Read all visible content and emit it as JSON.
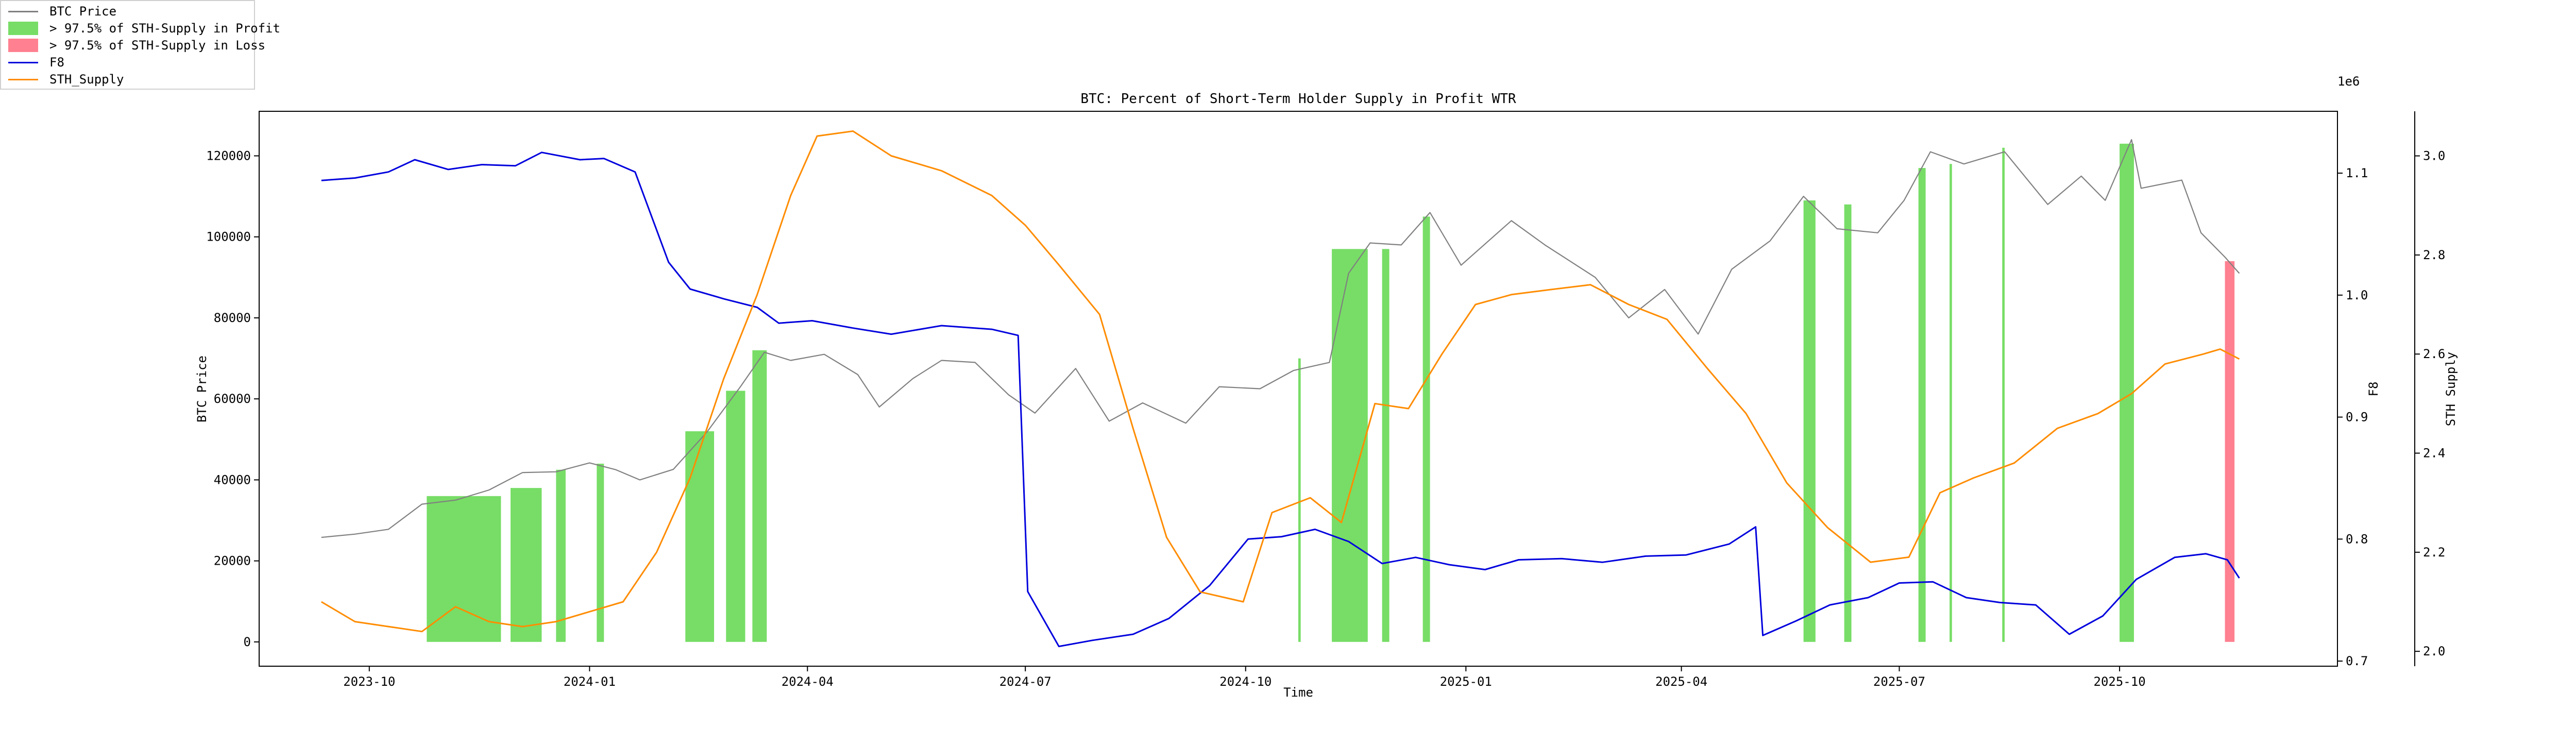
{
  "chart_data": {
    "type": "line",
    "title": "BTC: Percent of Short-Term Holder Supply in Profit WTR",
    "xlabel": "Time",
    "ylabel": "BTC Price",
    "y2label": "F8",
    "y3label": "STH Supply",
    "y3_offset_text": "1e6",
    "ylim": [
      -6000,
      131000
    ],
    "y2lim": [
      0.6958,
      1.1507
    ],
    "y3lim": [
      1.97,
      3.09
    ],
    "xlim": [
      "2023-08-16",
      "2025-12-31"
    ],
    "x_ticks": [
      "2023-10",
      "2024-01",
      "2024-04",
      "2024-07",
      "2024-10",
      "2025-01",
      "2025-04",
      "2025-07",
      "2025-10"
    ],
    "y_ticks": [
      "0",
      "20000",
      "40000",
      "60000",
      "80000",
      "100000",
      "120000"
    ],
    "y2_ticks": [
      "0.7",
      "0.8",
      "0.9",
      "1.0",
      "1.1"
    ],
    "y3_ticks": [
      "2.0",
      "2.2",
      "2.4",
      "2.6",
      "2.8",
      "3.0"
    ],
    "legend": {
      "position": "top-left",
      "entries": [
        {
          "label": "BTC Price",
          "color": "#808080",
          "kind": "line"
        },
        {
          "label": "> 97.5% of STH-Supply in Profit",
          "color": "#77dd66",
          "kind": "fill"
        },
        {
          "label": "> 97.5% of STH-Supply in Loss",
          "color": "#ff8090",
          "kind": "fill"
        },
        {
          "label": "F8",
          "color": "#0000dd",
          "kind": "line"
        },
        {
          "label": "STH_Supply",
          "color": "#ff8c00",
          "kind": "line"
        }
      ]
    },
    "series": [
      {
        "name": "BTC Price",
        "axis": "left",
        "color": "#808080",
        "points": [
          [
            "2023-09-11",
            25800
          ],
          [
            "2023-09-25",
            26600
          ],
          [
            "2023-10-09",
            27800
          ],
          [
            "2023-10-23",
            34000
          ],
          [
            "2023-11-06",
            35000
          ],
          [
            "2023-11-20",
            37500
          ],
          [
            "2023-12-04",
            41800
          ],
          [
            "2023-12-18",
            42000
          ],
          [
            "2024-01-01",
            44200
          ],
          [
            "2024-01-12",
            42500
          ],
          [
            "2024-01-22",
            40000
          ],
          [
            "2024-02-05",
            42600
          ],
          [
            "2024-02-19",
            51800
          ],
          [
            "2024-03-04",
            63000
          ],
          [
            "2024-03-14",
            71500
          ],
          [
            "2024-03-25",
            69500
          ],
          [
            "2024-04-08",
            71000
          ],
          [
            "2024-04-22",
            66000
          ],
          [
            "2024-05-01",
            58000
          ],
          [
            "2024-05-15",
            65000
          ],
          [
            "2024-05-27",
            69500
          ],
          [
            "2024-06-10",
            69000
          ],
          [
            "2024-06-24",
            61000
          ],
          [
            "2024-07-05",
            56500
          ],
          [
            "2024-07-22",
            67500
          ],
          [
            "2024-08-05",
            54500
          ],
          [
            "2024-08-19",
            59000
          ],
          [
            "2024-09-06",
            54000
          ],
          [
            "2024-09-20",
            63000
          ],
          [
            "2024-10-07",
            62500
          ],
          [
            "2024-10-21",
            67000
          ],
          [
            "2024-11-05",
            69000
          ],
          [
            "2024-11-13",
            91000
          ],
          [
            "2024-11-22",
            98500
          ],
          [
            "2024-12-05",
            98000
          ],
          [
            "2024-12-17",
            106000
          ],
          [
            "2024-12-30",
            93000
          ],
          [
            "2025-01-20",
            104000
          ],
          [
            "2025-02-03",
            98000
          ],
          [
            "2025-02-24",
            90000
          ],
          [
            "2025-03-10",
            80000
          ],
          [
            "2025-03-25",
            87000
          ],
          [
            "2025-04-08",
            76000
          ],
          [
            "2025-04-22",
            92000
          ],
          [
            "2025-05-08",
            99000
          ],
          [
            "2025-05-22",
            110000
          ],
          [
            "2025-06-05",
            102000
          ],
          [
            "2025-06-22",
            101000
          ],
          [
            "2025-07-03",
            109000
          ],
          [
            "2025-07-14",
            121000
          ],
          [
            "2025-07-28",
            118000
          ],
          [
            "2025-08-14",
            121000
          ],
          [
            "2025-09-01",
            108000
          ],
          [
            "2025-09-15",
            115000
          ],
          [
            "2025-09-25",
            109000
          ],
          [
            "2025-10-06",
            124000
          ],
          [
            "2025-10-10",
            112000
          ],
          [
            "2025-10-27",
            114000
          ],
          [
            "2025-11-04",
            101000
          ],
          [
            "2025-11-14",
            95000
          ],
          [
            "2025-11-20",
            91000
          ]
        ]
      },
      {
        "name": "F8",
        "axis": "right",
        "color": "#0000dd",
        "points": [
          [
            "2023-09-11",
            1.094
          ],
          [
            "2023-09-25",
            1.096
          ],
          [
            "2023-10-09",
            1.101
          ],
          [
            "2023-10-20",
            1.111
          ],
          [
            "2023-11-03",
            1.103
          ],
          [
            "2023-11-17",
            1.107
          ],
          [
            "2023-12-01",
            1.106
          ],
          [
            "2023-12-12",
            1.117
          ],
          [
            "2023-12-28",
            1.111
          ],
          [
            "2024-01-07",
            1.112
          ],
          [
            "2024-01-20",
            1.101
          ],
          [
            "2024-02-03",
            1.027
          ],
          [
            "2024-02-12",
            1.005
          ],
          [
            "2024-02-26",
            0.997
          ],
          [
            "2024-03-11",
            0.99
          ],
          [
            "2024-03-20",
            0.977
          ],
          [
            "2024-04-03",
            0.979
          ],
          [
            "2024-04-20",
            0.973
          ],
          [
            "2024-05-06",
            0.968
          ],
          [
            "2024-05-27",
            0.975
          ],
          [
            "2024-06-17",
            0.972
          ],
          [
            "2024-06-28",
            0.967
          ],
          [
            "2024-07-02",
            0.757
          ],
          [
            "2024-07-15",
            0.712
          ],
          [
            "2024-07-29",
            0.717
          ],
          [
            "2024-08-15",
            0.722
          ],
          [
            "2024-08-30",
            0.735
          ],
          [
            "2024-09-16",
            0.762
          ],
          [
            "2024-10-02",
            0.8
          ],
          [
            "2024-10-16",
            0.802
          ],
          [
            "2024-10-30",
            0.808
          ],
          [
            "2024-11-13",
            0.798
          ],
          [
            "2024-11-27",
            0.78
          ],
          [
            "2024-12-11",
            0.785
          ],
          [
            "2024-12-25",
            0.779
          ],
          [
            "2025-01-09",
            0.775
          ],
          [
            "2025-01-23",
            0.783
          ],
          [
            "2025-02-10",
            0.784
          ],
          [
            "2025-02-27",
            0.781
          ],
          [
            "2025-03-17",
            0.786
          ],
          [
            "2025-04-03",
            0.787
          ],
          [
            "2025-04-21",
            0.796
          ],
          [
            "2025-05-02",
            0.81
          ],
          [
            "2025-05-05",
            0.721
          ],
          [
            "2025-05-19",
            0.733
          ],
          [
            "2025-06-02",
            0.746
          ],
          [
            "2025-06-18",
            0.752
          ],
          [
            "2025-07-01",
            0.764
          ],
          [
            "2025-07-15",
            0.765
          ],
          [
            "2025-07-29",
            0.752
          ],
          [
            "2025-08-12",
            0.748
          ],
          [
            "2025-08-27",
            0.746
          ],
          [
            "2025-09-10",
            0.722
          ],
          [
            "2025-09-24",
            0.737
          ],
          [
            "2025-10-08",
            0.767
          ],
          [
            "2025-10-24",
            0.785
          ],
          [
            "2025-11-06",
            0.788
          ],
          [
            "2025-11-15",
            0.783
          ],
          [
            "2025-11-20",
            0.768
          ]
        ]
      },
      {
        "name": "STH_Supply",
        "axis": "right2",
        "color": "#ff8c00",
        "points": [
          [
            "2023-09-11",
            2.1
          ],
          [
            "2023-09-25",
            2.06
          ],
          [
            "2023-10-09",
            2.05
          ],
          [
            "2023-10-23",
            2.04
          ],
          [
            "2023-11-06",
            2.09
          ],
          [
            "2023-11-20",
            2.06
          ],
          [
            "2023-12-04",
            2.05
          ],
          [
            "2023-12-18",
            2.06
          ],
          [
            "2024-01-01",
            2.08
          ],
          [
            "2024-01-15",
            2.1
          ],
          [
            "2024-01-29",
            2.2
          ],
          [
            "2024-02-12",
            2.35
          ],
          [
            "2024-02-26",
            2.55
          ],
          [
            "2024-03-11",
            2.72
          ],
          [
            "2024-03-25",
            2.92
          ],
          [
            "2024-04-05",
            3.04
          ],
          [
            "2024-04-20",
            3.05
          ],
          [
            "2024-05-06",
            3.0
          ],
          [
            "2024-05-27",
            2.97
          ],
          [
            "2024-06-17",
            2.92
          ],
          [
            "2024-07-01",
            2.86
          ],
          [
            "2024-07-15",
            2.78
          ],
          [
            "2024-08-01",
            2.68
          ],
          [
            "2024-08-15",
            2.45
          ],
          [
            "2024-08-29",
            2.23
          ],
          [
            "2024-09-12",
            2.12
          ],
          [
            "2024-09-30",
            2.1
          ],
          [
            "2024-10-12",
            2.28
          ],
          [
            "2024-10-28",
            2.31
          ],
          [
            "2024-11-10",
            2.26
          ],
          [
            "2024-11-24",
            2.5
          ],
          [
            "2024-12-08",
            2.49
          ],
          [
            "2024-12-22",
            2.6
          ],
          [
            "2025-01-05",
            2.7
          ],
          [
            "2025-01-20",
            2.72
          ],
          [
            "2025-02-05",
            2.73
          ],
          [
            "2025-02-22",
            2.74
          ],
          [
            "2025-03-10",
            2.7
          ],
          [
            "2025-03-26",
            2.67
          ],
          [
            "2025-04-12",
            2.57
          ],
          [
            "2025-04-28",
            2.48
          ],
          [
            "2025-05-15",
            2.34
          ],
          [
            "2025-06-01",
            2.25
          ],
          [
            "2025-06-19",
            2.18
          ],
          [
            "2025-07-05",
            2.19
          ],
          [
            "2025-07-18",
            2.32
          ],
          [
            "2025-08-01",
            2.35
          ],
          [
            "2025-08-18",
            2.38
          ],
          [
            "2025-09-05",
            2.45
          ],
          [
            "2025-09-22",
            2.48
          ],
          [
            "2025-10-06",
            2.52
          ],
          [
            "2025-10-20",
            2.58
          ],
          [
            "2025-11-05",
            2.6
          ],
          [
            "2025-11-12",
            2.61
          ],
          [
            "2025-11-20",
            2.59
          ]
        ]
      }
    ],
    "profit_shading": [
      {
        "start": "2023-10-25",
        "end": "2023-11-25",
        "top": 36000
      },
      {
        "start": "2023-11-29",
        "end": "2023-12-12",
        "top": 38000
      },
      {
        "start": "2023-12-18",
        "end": "2023-12-22",
        "top": 42500
      },
      {
        "start": "2024-01-04",
        "end": "2024-01-07",
        "top": 44000
      },
      {
        "start": "2024-02-10",
        "end": "2024-02-22",
        "top": 52000
      },
      {
        "start": "2024-02-27",
        "end": "2024-03-06",
        "top": 62000
      },
      {
        "start": "2024-03-09",
        "end": "2024-03-15",
        "top": 72000
      },
      {
        "start": "2024-10-23",
        "end": "2024-10-24",
        "top": 70000
      },
      {
        "start": "2024-11-06",
        "end": "2024-11-21",
        "top": 97000
      },
      {
        "start": "2024-11-27",
        "end": "2024-11-30",
        "top": 97000
      },
      {
        "start": "2024-12-14",
        "end": "2024-12-17",
        "top": 105000
      },
      {
        "start": "2025-05-22",
        "end": "2025-05-27",
        "top": 109000
      },
      {
        "start": "2025-06-08",
        "end": "2025-06-11",
        "top": 108000
      },
      {
        "start": "2025-07-09",
        "end": "2025-07-12",
        "top": 117000
      },
      {
        "start": "2025-07-22",
        "end": "2025-07-23",
        "top": 118000
      },
      {
        "start": "2025-08-13",
        "end": "2025-08-14",
        "top": 122000
      },
      {
        "start": "2025-10-01",
        "end": "2025-10-07",
        "top": 123000
      }
    ],
    "loss_shading": [
      {
        "start": "2025-11-14",
        "end": "2025-11-18",
        "top": 94000
      }
    ]
  }
}
